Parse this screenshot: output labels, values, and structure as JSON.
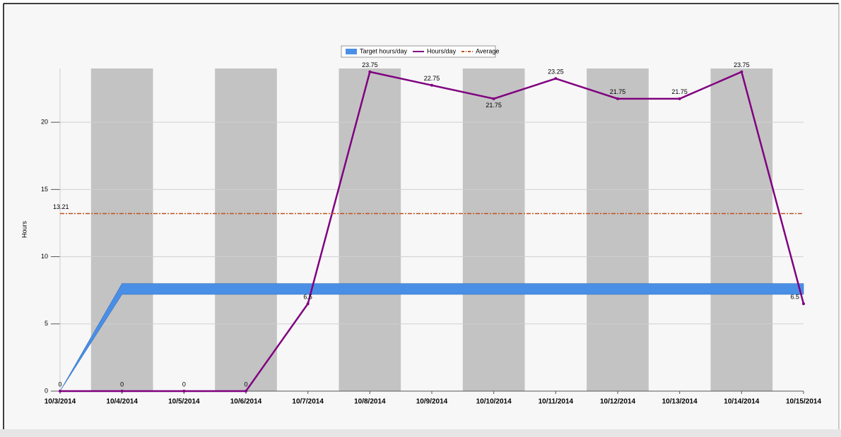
{
  "chart_data": {
    "type": "line",
    "ylabel": "Hours",
    "categories": [
      "10/3/2014",
      "10/4/2014",
      "10/5/2014",
      "10/6/2014",
      "10/7/2014",
      "10/8/2014",
      "10/9/2014",
      "10/10/2014",
      "10/11/2014",
      "10/12/2014",
      "10/13/2014",
      "10/14/2014",
      "10/15/2014"
    ],
    "series": [
      {
        "name": "Target hours/day",
        "color": "#4a8fe6",
        "kind": "band",
        "values": [
          0,
          8,
          8,
          8,
          8,
          8,
          8,
          8,
          8,
          8,
          8,
          8,
          8
        ],
        "low": [
          0,
          7.2,
          7.2,
          7.2,
          7.2,
          7.2,
          7.2,
          7.2,
          7.2,
          7.2,
          7.2,
          7.2,
          7.2
        ]
      },
      {
        "name": "Hours/day",
        "color": "#800080",
        "kind": "line",
        "values": [
          0,
          0,
          0,
          0,
          6.5,
          23.75,
          22.75,
          21.75,
          23.25,
          21.75,
          21.75,
          23.75,
          6.5
        ]
      },
      {
        "name": "Average",
        "color": "#c0501f",
        "kind": "average",
        "value": 13.21
      }
    ],
    "ylim": [
      0,
      24
    ],
    "yticks": [
      0,
      5,
      10,
      15,
      20
    ],
    "grid": true,
    "legend": "top"
  }
}
